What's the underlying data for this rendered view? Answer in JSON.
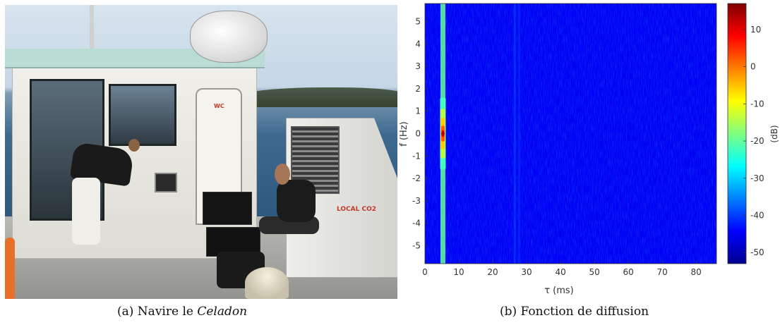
{
  "figure": {
    "panel_a": {
      "caption_prefix": "(a) Navire le",
      "caption_italic": "Celadon",
      "photo_text": {
        "door_sign": "WC",
        "box_sign": "LOCAL CO2"
      }
    },
    "panel_b": {
      "caption": "(b) Fonction de diffusion"
    }
  },
  "chart_data": {
    "type": "heatmap",
    "xlabel": "τ (ms)",
    "ylabel": "f (Hz)",
    "colorbar_label": "(dB)",
    "xlim": [
      0,
      86
    ],
    "ylim": [
      -5.8,
      5.8
    ],
    "x_ticks": [
      0,
      10,
      20,
      30,
      40,
      50,
      60,
      70,
      80
    ],
    "y_ticks": [
      5,
      4,
      3,
      2,
      1,
      0,
      -1,
      -2,
      -3,
      -4,
      -5
    ],
    "clim": [
      -53,
      17
    ],
    "colorbar_ticks": [
      10,
      0,
      -10,
      -20,
      -30,
      -40,
      -50
    ],
    "colormap": "jet",
    "background_level_db": -45,
    "peak": {
      "tau_ms": 5.3,
      "f_hz": 0,
      "level_db": 10
    },
    "ridges": [
      {
        "tau_ms": 5.3,
        "level_db": -20
      },
      {
        "tau_ms": 26.5,
        "level_db": -38
      },
      {
        "tau_ms": 27.8,
        "level_db": -40
      }
    ]
  }
}
